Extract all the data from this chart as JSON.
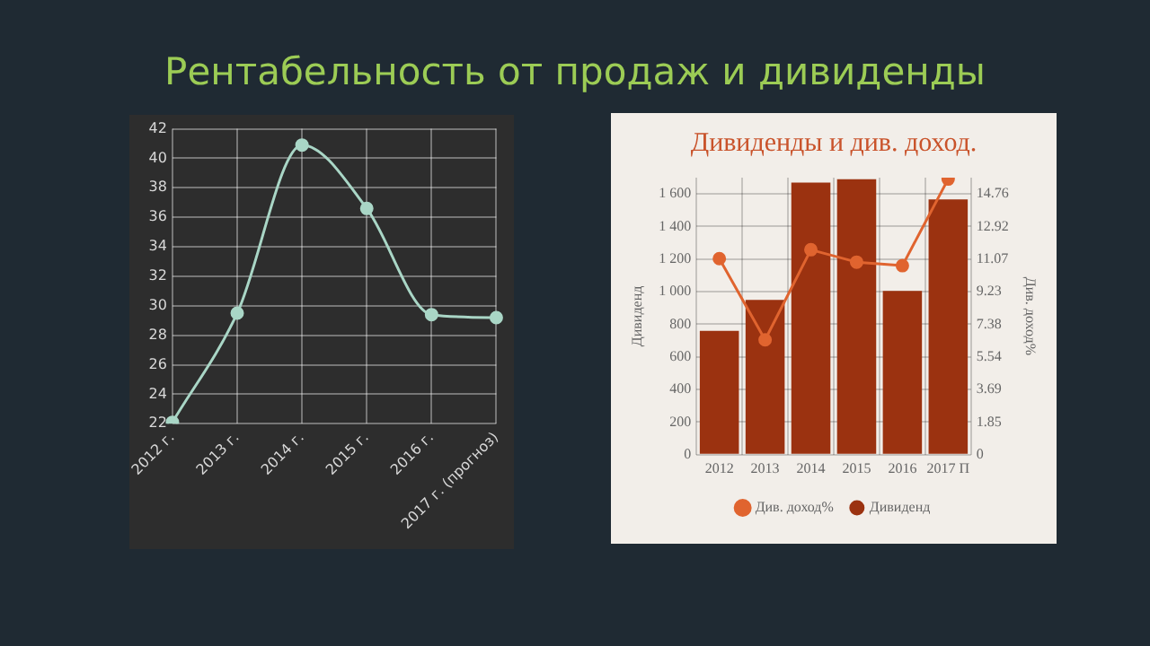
{
  "chart_data": [
    {
      "type": "line",
      "title": "Рентабельность от продаж и дивиденды",
      "categories": [
        "2012 г.",
        "2013 г.",
        "2014 г.",
        "2015 г.",
        "2016 г.",
        "2017 г. (прогноз)"
      ],
      "values": [
        22.1,
        29.5,
        40.9,
        36.6,
        29.4,
        29.2
      ],
      "color": "#a9d6c6",
      "ylim": [
        22,
        42
      ],
      "yticks": [
        22,
        24,
        26,
        28,
        30,
        32,
        34,
        36,
        38,
        40,
        42
      ],
      "grid": true,
      "marker": "circle"
    },
    {
      "type": "bar",
      "title": "Дивиденды и див. доход.",
      "ylabel": "Дивиденд",
      "y2label": "Див. доход%",
      "categories": [
        "2012",
        "2013",
        "2014",
        "2015",
        "2016",
        "2017 П"
      ],
      "series": [
        {
          "name": "Дивиденд",
          "color": "#9b3210",
          "values": [
            760,
            950,
            1670,
            1690,
            1005,
            1567
          ]
        },
        {
          "name": "Див. доход%",
          "type": "line",
          "axis": "y2",
          "color": "#e0642f",
          "values": [
            11.1,
            6.5,
            11.6,
            10.9,
            10.7,
            15.6
          ]
        }
      ],
      "ylim": [
        0,
        1700
      ],
      "yticks": [
        0,
        200,
        400,
        600,
        800,
        {
          "value": 1000,
          "label": "1 000"
        },
        {
          "value": 1200,
          "label": "1 200"
        },
        {
          "value": 1400,
          "label": "1 400"
        },
        {
          "value": 1600,
          "label": "1 600"
        }
      ],
      "y2lim": [
        0,
        15.68
      ],
      "y2ticks": [
        0,
        1.85,
        3.69,
        5.54,
        7.38,
        9.23,
        11.07,
        12.92,
        14.76
      ],
      "grid": true,
      "legend": "bottom",
      "marker": "circle"
    }
  ]
}
